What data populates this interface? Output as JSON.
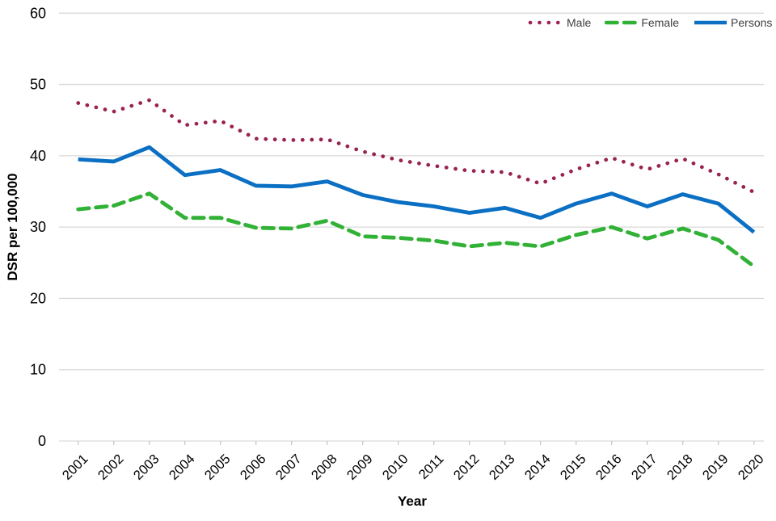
{
  "chart_data": {
    "type": "line",
    "title": "",
    "xlabel": "Year",
    "ylabel": "DSR per 100,000",
    "ylim": [
      0,
      60
    ],
    "ytick_step": 10,
    "grid": true,
    "legend_position": "top-right",
    "categories": [
      2001,
      2002,
      2003,
      2004,
      2005,
      2006,
      2007,
      2008,
      2009,
      2010,
      2011,
      2012,
      2013,
      2014,
      2015,
      2016,
      2017,
      2018,
      2019,
      2020
    ],
    "series": [
      {
        "name": "Male",
        "color": "#9A2150",
        "line_style": "dotted",
        "values": [
          47.4,
          46.2,
          47.8,
          44.3,
          44.9,
          42.4,
          42.2,
          42.3,
          40.6,
          39.4,
          38.6,
          37.9,
          37.7,
          36.1,
          38.1,
          39.7,
          38.1,
          39.6,
          37.4,
          34.9
        ]
      },
      {
        "name": "Female",
        "color": "#31B135",
        "line_style": "dashed",
        "values": [
          32.5,
          33.0,
          34.7,
          31.3,
          31.3,
          29.9,
          29.8,
          30.9,
          28.7,
          28.5,
          28.1,
          27.3,
          27.8,
          27.3,
          28.9,
          30.0,
          28.4,
          29.8,
          28.2,
          24.5
        ]
      },
      {
        "name": "Persons",
        "color": "#0B6FC3",
        "line_style": "solid",
        "values": [
          39.5,
          39.2,
          41.2,
          37.3,
          38.0,
          35.8,
          35.7,
          36.4,
          34.5,
          33.5,
          32.9,
          32.0,
          32.7,
          31.3,
          33.3,
          34.7,
          32.9,
          34.6,
          33.3,
          29.3
        ]
      }
    ],
    "colors": {
      "gridline": "#D9D9D9",
      "axis_tick": "#C8C8C8",
      "tick_label": "#000000",
      "axis_title": "#000000",
      "legend_text": "#404040"
    }
  }
}
